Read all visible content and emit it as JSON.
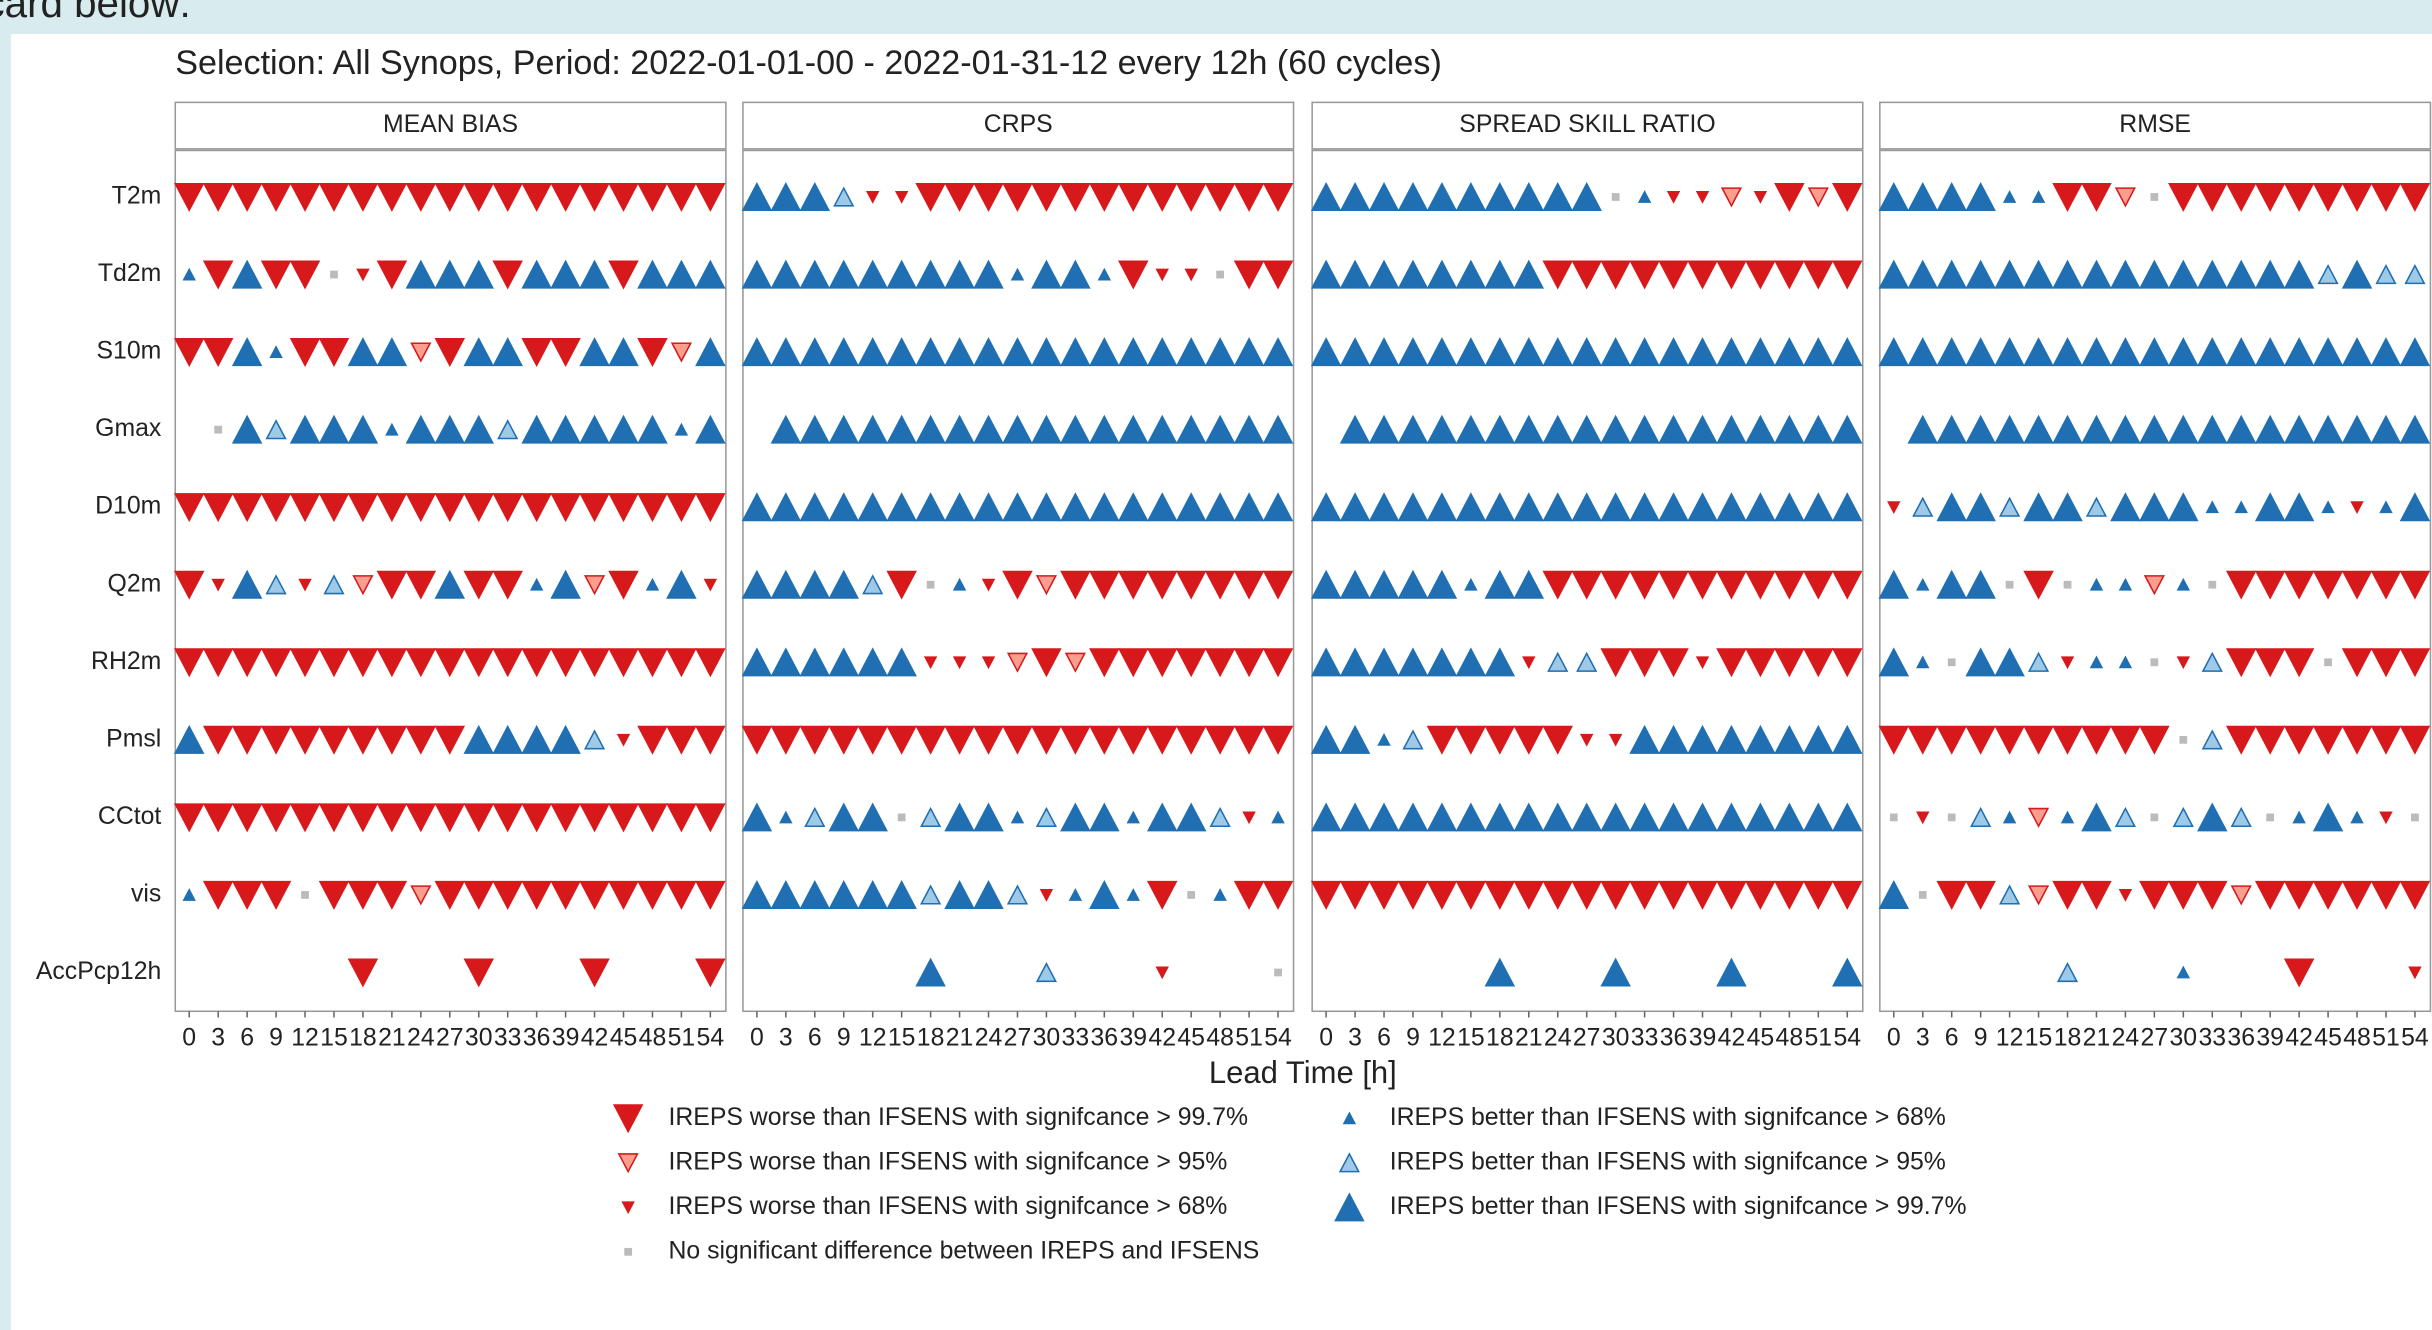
{
  "intro": "card below:",
  "chart_data": {
    "type": "scorecard",
    "title": "Selection: All Synops, Period: 2022-01-01-00 - 2022-01-31-12 every 12h (60 cycles)",
    "x_label": "Lead Time [h]",
    "rows": [
      "T2m",
      "Td2m",
      "S10m",
      "Gmax",
      "D10m",
      "Q2m",
      "RH2m",
      "Pmsl",
      "CCtot",
      "vis",
      "AccPcp12h"
    ],
    "xticks": [
      0,
      3,
      6,
      9,
      12,
      15,
      18,
      21,
      24,
      27,
      30,
      33,
      36,
      39,
      42,
      45,
      48,
      51,
      54
    ],
    "legend": [
      {
        "label": "IREPS worse than IFSENS with signifcance > 99.7%",
        "shape": "down",
        "size": 18,
        "color": "#d7191c",
        "fill": "#d7191c"
      },
      {
        "label": "IREPS worse than IFSENS with signifcance > 95%",
        "shape": "down",
        "size": 12,
        "color": "#d7191c",
        "fill": "#fc9e8e"
      },
      {
        "label": "IREPS worse than IFSENS with signifcance > 68%",
        "shape": "down",
        "size": 7,
        "color": "#d7191c",
        "fill": "#d7191c"
      },
      {
        "label": "No significant difference between IREPS and IFSENS",
        "shape": "dot",
        "size": 4,
        "color": "#bbbbbb",
        "fill": "#bbbbbb"
      },
      {
        "label": "IREPS better than IFSENS with signifcance > 68%",
        "shape": "up",
        "size": 7,
        "color": "#1f6fb2",
        "fill": "#1f6fb2"
      },
      {
        "label": "IREPS better than IFSENS with signifcance > 95%",
        "shape": "up",
        "size": 12,
        "color": "#1f6fb2",
        "fill": "#9ecae8"
      },
      {
        "label": "IREPS better than IFSENS with signifcance > 99.7%",
        "shape": "up",
        "size": 18,
        "color": "#1f6fb2",
        "fill": "#1f6fb2"
      }
    ],
    "panels": [
      {
        "name": "MEAN BIAS",
        "values": [
          [
            0,
            0,
            0,
            0,
            0,
            0,
            0,
            0,
            0,
            0,
            0,
            0,
            0,
            0,
            0,
            0,
            0,
            0,
            0
          ],
          [
            4,
            0,
            6,
            0,
            0,
            3,
            2,
            0,
            6,
            6,
            6,
            0,
            6,
            6,
            6,
            0,
            6,
            6,
            6
          ],
          [
            0,
            0,
            6,
            4,
            0,
            0,
            6,
            6,
            1,
            0,
            6,
            6,
            0,
            0,
            6,
            6,
            0,
            1,
            6
          ],
          [
            null,
            3,
            6,
            5,
            6,
            6,
            6,
            4,
            6,
            6,
            6,
            5,
            6,
            6,
            6,
            6,
            6,
            4,
            6
          ],
          [
            0,
            0,
            0,
            0,
            0,
            0,
            0,
            0,
            0,
            0,
            0,
            0,
            0,
            0,
            0,
            0,
            0,
            0,
            0
          ],
          [
            0,
            2,
            6,
            5,
            2,
            5,
            1,
            0,
            0,
            6,
            0,
            0,
            4,
            6,
            1,
            0,
            4,
            6,
            2
          ],
          [
            0,
            0,
            0,
            0,
            0,
            0,
            0,
            0,
            0,
            0,
            0,
            0,
            0,
            0,
            0,
            0,
            0,
            0,
            0
          ],
          [
            6,
            0,
            0,
            0,
            0,
            0,
            0,
            0,
            0,
            0,
            6,
            6,
            6,
            6,
            5,
            2,
            0,
            0,
            0
          ],
          [
            0,
            0,
            0,
            0,
            0,
            0,
            0,
            0,
            0,
            0,
            0,
            0,
            0,
            0,
            0,
            0,
            0,
            0,
            0
          ],
          [
            4,
            0,
            0,
            0,
            3,
            0,
            0,
            0,
            1,
            0,
            0,
            0,
            0,
            0,
            0,
            0,
            0,
            0,
            0
          ],
          [
            null,
            null,
            null,
            null,
            null,
            null,
            0,
            null,
            null,
            null,
            0,
            null,
            null,
            null,
            0,
            null,
            null,
            null,
            0
          ]
        ]
      },
      {
        "name": "CRPS",
        "values": [
          [
            6,
            6,
            6,
            5,
            2,
            2,
            0,
            0,
            0,
            0,
            0,
            0,
            0,
            0,
            0,
            0,
            0,
            0,
            0
          ],
          [
            6,
            6,
            6,
            6,
            6,
            6,
            6,
            6,
            6,
            4,
            6,
            6,
            4,
            0,
            2,
            2,
            3,
            0,
            0
          ],
          [
            6,
            6,
            6,
            6,
            6,
            6,
            6,
            6,
            6,
            6,
            6,
            6,
            6,
            6,
            6,
            6,
            6,
            6,
            6
          ],
          [
            null,
            6,
            6,
            6,
            6,
            6,
            6,
            6,
            6,
            6,
            6,
            6,
            6,
            6,
            6,
            6,
            6,
            6,
            6
          ],
          [
            6,
            6,
            6,
            6,
            6,
            6,
            6,
            6,
            6,
            6,
            6,
            6,
            6,
            6,
            6,
            6,
            6,
            6,
            6
          ],
          [
            6,
            6,
            6,
            6,
            5,
            0,
            3,
            4,
            2,
            0,
            1,
            0,
            0,
            0,
            0,
            0,
            0,
            0,
            0
          ],
          [
            6,
            6,
            6,
            6,
            6,
            6,
            2,
            2,
            2,
            1,
            0,
            1,
            0,
            0,
            0,
            0,
            0,
            0,
            0
          ],
          [
            0,
            0,
            0,
            0,
            0,
            0,
            0,
            0,
            0,
            0,
            0,
            0,
            0,
            0,
            0,
            0,
            0,
            0,
            0
          ],
          [
            6,
            4,
            5,
            6,
            6,
            3,
            5,
            6,
            6,
            4,
            5,
            6,
            6,
            4,
            6,
            6,
            5,
            2,
            4
          ],
          [
            6,
            6,
            6,
            6,
            6,
            6,
            5,
            6,
            6,
            5,
            2,
            4,
            6,
            4,
            0,
            3,
            4,
            0,
            0
          ],
          [
            null,
            null,
            null,
            null,
            null,
            null,
            6,
            null,
            null,
            null,
            5,
            null,
            null,
            null,
            2,
            null,
            null,
            null,
            3
          ]
        ]
      },
      {
        "name": "SPREAD SKILL RATIO",
        "values": [
          [
            6,
            6,
            6,
            6,
            6,
            6,
            6,
            6,
            6,
            6,
            3,
            4,
            2,
            2,
            1,
            2,
            0,
            1,
            0
          ],
          [
            6,
            6,
            6,
            6,
            6,
            6,
            6,
            6,
            0,
            0,
            0,
            0,
            0,
            0,
            0,
            0,
            0,
            0,
            0
          ],
          [
            6,
            6,
            6,
            6,
            6,
            6,
            6,
            6,
            6,
            6,
            6,
            6,
            6,
            6,
            6,
            6,
            6,
            6,
            6
          ],
          [
            null,
            6,
            6,
            6,
            6,
            6,
            6,
            6,
            6,
            6,
            6,
            6,
            6,
            6,
            6,
            6,
            6,
            6,
            6
          ],
          [
            6,
            6,
            6,
            6,
            6,
            6,
            6,
            6,
            6,
            6,
            6,
            6,
            6,
            6,
            6,
            6,
            6,
            6,
            6
          ],
          [
            6,
            6,
            6,
            6,
            6,
            4,
            6,
            6,
            0,
            0,
            0,
            0,
            0,
            0,
            0,
            0,
            0,
            0,
            0
          ],
          [
            6,
            6,
            6,
            6,
            6,
            6,
            6,
            2,
            5,
            5,
            0,
            0,
            0,
            2,
            0,
            0,
            0,
            0,
            0
          ],
          [
            6,
            6,
            4,
            5,
            0,
            0,
            0,
            0,
            0,
            2,
            2,
            6,
            6,
            6,
            6,
            6,
            6,
            6,
            6
          ],
          [
            6,
            6,
            6,
            6,
            6,
            6,
            6,
            6,
            6,
            6,
            6,
            6,
            6,
            6,
            6,
            6,
            6,
            6,
            6
          ],
          [
            0,
            0,
            0,
            0,
            0,
            0,
            0,
            0,
            0,
            0,
            0,
            0,
            0,
            0,
            0,
            0,
            0,
            0,
            0
          ],
          [
            null,
            null,
            null,
            null,
            null,
            null,
            6,
            null,
            null,
            null,
            6,
            null,
            null,
            null,
            6,
            null,
            null,
            null,
            6
          ]
        ]
      },
      {
        "name": "RMSE",
        "values": [
          [
            6,
            6,
            6,
            6,
            4,
            4,
            0,
            0,
            1,
            3,
            0,
            0,
            0,
            0,
            0,
            0,
            0,
            0,
            0
          ],
          [
            6,
            6,
            6,
            6,
            6,
            6,
            6,
            6,
            6,
            6,
            6,
            6,
            6,
            6,
            6,
            5,
            6,
            5,
            5
          ],
          [
            6,
            6,
            6,
            6,
            6,
            6,
            6,
            6,
            6,
            6,
            6,
            6,
            6,
            6,
            6,
            6,
            6,
            6,
            6
          ],
          [
            null,
            6,
            6,
            6,
            6,
            6,
            6,
            6,
            6,
            6,
            6,
            6,
            6,
            6,
            6,
            6,
            6,
            6,
            6
          ],
          [
            2,
            5,
            6,
            6,
            5,
            6,
            6,
            5,
            6,
            6,
            6,
            4,
            4,
            6,
            6,
            4,
            2,
            4,
            6
          ],
          [
            6,
            4,
            6,
            6,
            3,
            0,
            3,
            4,
            4,
            1,
            4,
            3,
            0,
            0,
            0,
            0,
            0,
            0,
            0
          ],
          [
            6,
            4,
            3,
            6,
            6,
            5,
            2,
            4,
            4,
            3,
            2,
            5,
            0,
            0,
            0,
            3,
            0,
            0,
            0
          ],
          [
            0,
            0,
            0,
            0,
            0,
            0,
            0,
            0,
            0,
            0,
            3,
            5,
            0,
            0,
            0,
            0,
            0,
            0,
            0
          ],
          [
            3,
            2,
            3,
            5,
            4,
            1,
            4,
            6,
            5,
            3,
            5,
            6,
            5,
            3,
            4,
            6,
            4,
            2,
            3
          ],
          [
            6,
            3,
            0,
            0,
            5,
            1,
            0,
            0,
            2,
            0,
            0,
            0,
            1,
            0,
            0,
            0,
            0,
            0,
            0
          ],
          [
            null,
            null,
            null,
            null,
            null,
            null,
            5,
            null,
            null,
            null,
            4,
            null,
            null,
            null,
            0,
            null,
            null,
            null,
            2
          ]
        ]
      }
    ]
  }
}
